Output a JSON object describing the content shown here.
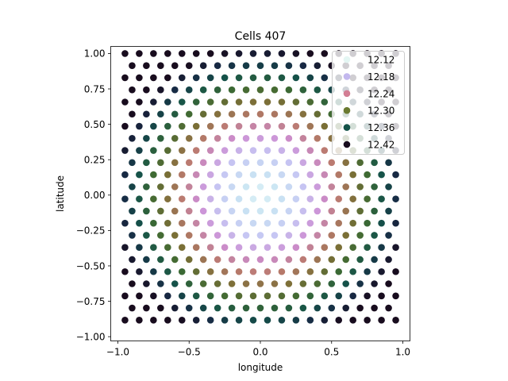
{
  "chart_data": {
    "type": "scatter",
    "title": "Cells 407",
    "xlabel": "longitude",
    "ylabel": "latitude",
    "xlim": [
      -1.05,
      1.05
    ],
    "ylim": [
      -1.03,
      1.05
    ],
    "xticks": [
      -1.0,
      -0.5,
      0.0,
      0.5,
      1.0
    ],
    "xtick_labels": [
      "−1.0",
      "−0.5",
      "0.0",
      "0.5",
      "1.0"
    ],
    "yticks": [
      -1.0,
      -0.75,
      -0.5,
      -0.25,
      0.0,
      0.25,
      0.5,
      0.75,
      1.0
    ],
    "ytick_labels": [
      "−1.00",
      "−0.75",
      "−0.50",
      "−0.25",
      "0.00",
      "0.25",
      "0.50",
      "0.75",
      "1.00"
    ],
    "grid": false,
    "legend_position": "top-right",
    "color_scale": {
      "name": "cubehelix",
      "levels": [
        12.12,
        12.18,
        12.24,
        12.3,
        12.36,
        12.42
      ],
      "legend_labels": [
        "12.12",
        "12.18",
        "12.24",
        "12.30",
        "12.36",
        "12.42"
      ],
      "colors": [
        "#e4f6f3",
        "#c3b8ee",
        "#d37e94",
        "#6a7a30",
        "#155349",
        "#180c1e"
      ],
      "point_colors": [
        "#eefcf8",
        "#c9e4f3",
        "#c6c6f3",
        "#cd8ed3",
        "#ba7a6e",
        "#7a6f36",
        "#3d6a33",
        "#155349",
        "#172a45",
        "#180c1e"
      ],
      "value_range": [
        12.1,
        12.44
      ]
    },
    "lattice": {
      "rows": 23,
      "y_start": 1.0,
      "y_step": 0.0856,
      "x_start_even_row": -0.95,
      "x_start_odd_row": -0.9,
      "x_step": 0.1,
      "x_max": 0.97,
      "value_model": "12.12 + 0.30 * (x^2 + y^2)^0.7"
    }
  }
}
